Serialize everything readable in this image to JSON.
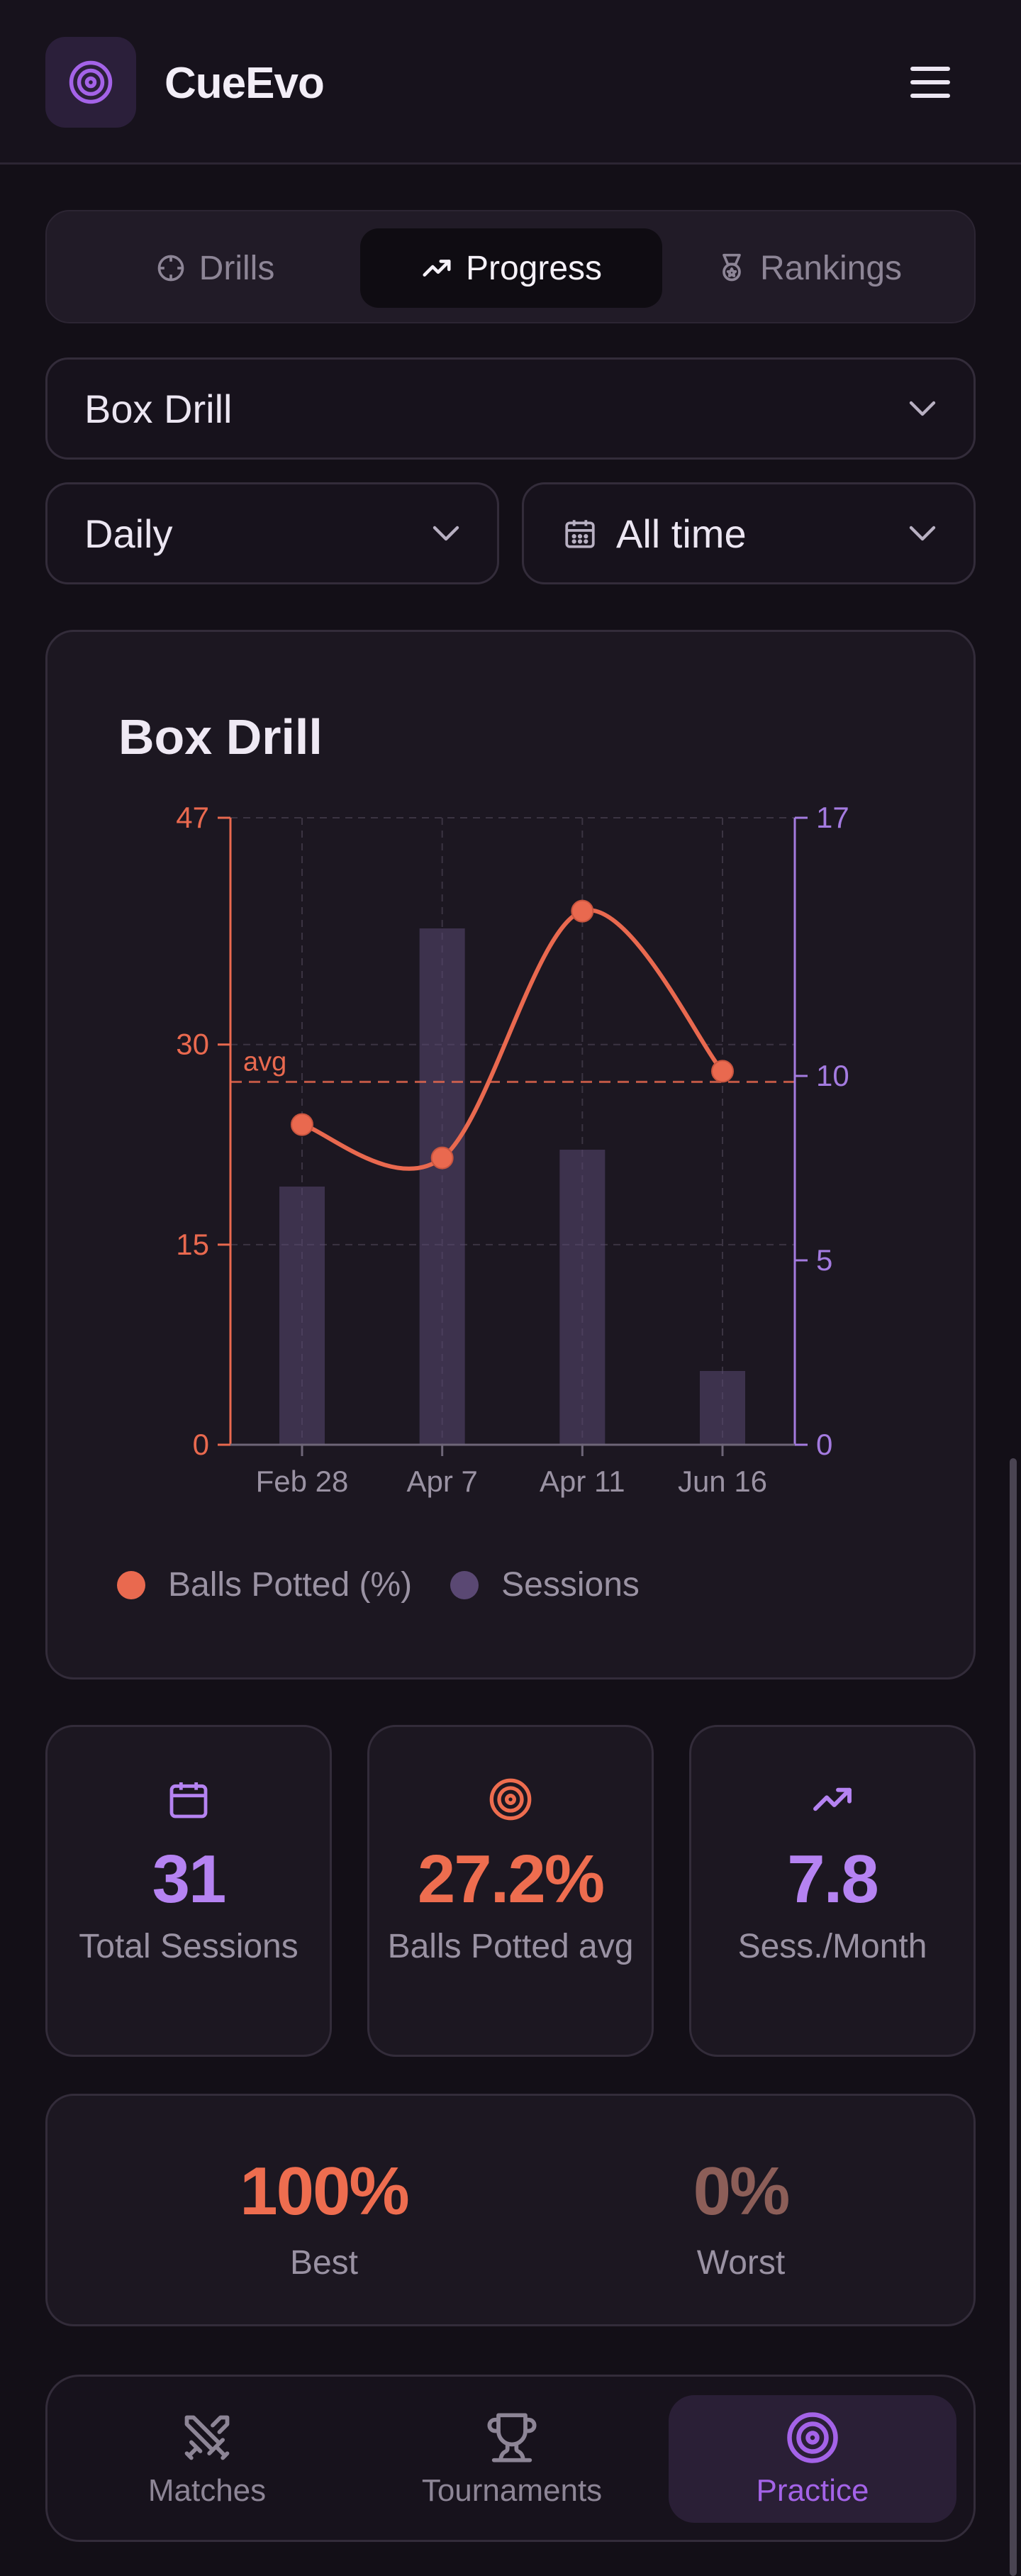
{
  "app": {
    "title": "CueEvo",
    "logo_icon": "target-icon",
    "menu_icon": "hamburger-icon"
  },
  "tabs": [
    {
      "label": "Drills",
      "icon": "crosshair-icon",
      "active": false
    },
    {
      "label": "Progress",
      "icon": "trending-up-icon",
      "active": true
    },
    {
      "label": "Rankings",
      "icon": "medal-icon",
      "active": false
    }
  ],
  "filters": {
    "drill": "Box Drill",
    "period": "Daily",
    "range": "All time"
  },
  "chart_data": {
    "type": "bar+line",
    "title": "Box Drill",
    "categories": [
      "Feb 28",
      "Apr 7",
      "Apr 11",
      "Jun 16"
    ],
    "series": [
      {
        "name": "Balls Potted (%)",
        "type": "line",
        "axis": "left",
        "color": "#e9694f",
        "values": [
          24,
          21.5,
          40,
          28
        ]
      },
      {
        "name": "Sessions",
        "type": "bar",
        "axis": "right",
        "color": "#5a4873",
        "values": [
          7,
          14,
          8,
          2
        ]
      }
    ],
    "avg_line": {
      "label": "avg",
      "value": 27.2,
      "axis": "left"
    },
    "y_left": {
      "ticks": [
        0,
        15,
        30,
        47
      ],
      "range": [
        0,
        47
      ],
      "color": "#e9694f"
    },
    "y_right": {
      "ticks": [
        0,
        5,
        10,
        17
      ],
      "range": [
        0,
        17
      ],
      "color": "#a47be0"
    },
    "grid": true,
    "legend_position": "bottom-left"
  },
  "stats": [
    {
      "icon": "calendar-icon",
      "value": "31",
      "label": "Total Sessions",
      "color": "#b583f2"
    },
    {
      "icon": "target-icon",
      "value": "27.2%",
      "label": "Balls Potted avg",
      "color": "#ee6d4f"
    },
    {
      "icon": "trending-up-icon",
      "value": "7.8",
      "label": "Sess./Month",
      "color": "#b583f2"
    }
  ],
  "best_worst": {
    "best": {
      "value": "100%",
      "label": "Best",
      "color": "#ee6d4f"
    },
    "worst": {
      "value": "0%",
      "label": "Worst",
      "color": "#8c5e58"
    }
  },
  "nav": [
    {
      "label": "Matches",
      "icon": "crossed-swords-icon",
      "active": false
    },
    {
      "label": "Tournaments",
      "icon": "trophy-icon",
      "active": false
    },
    {
      "label": "Practice",
      "icon": "target-icon",
      "active": true
    }
  ]
}
